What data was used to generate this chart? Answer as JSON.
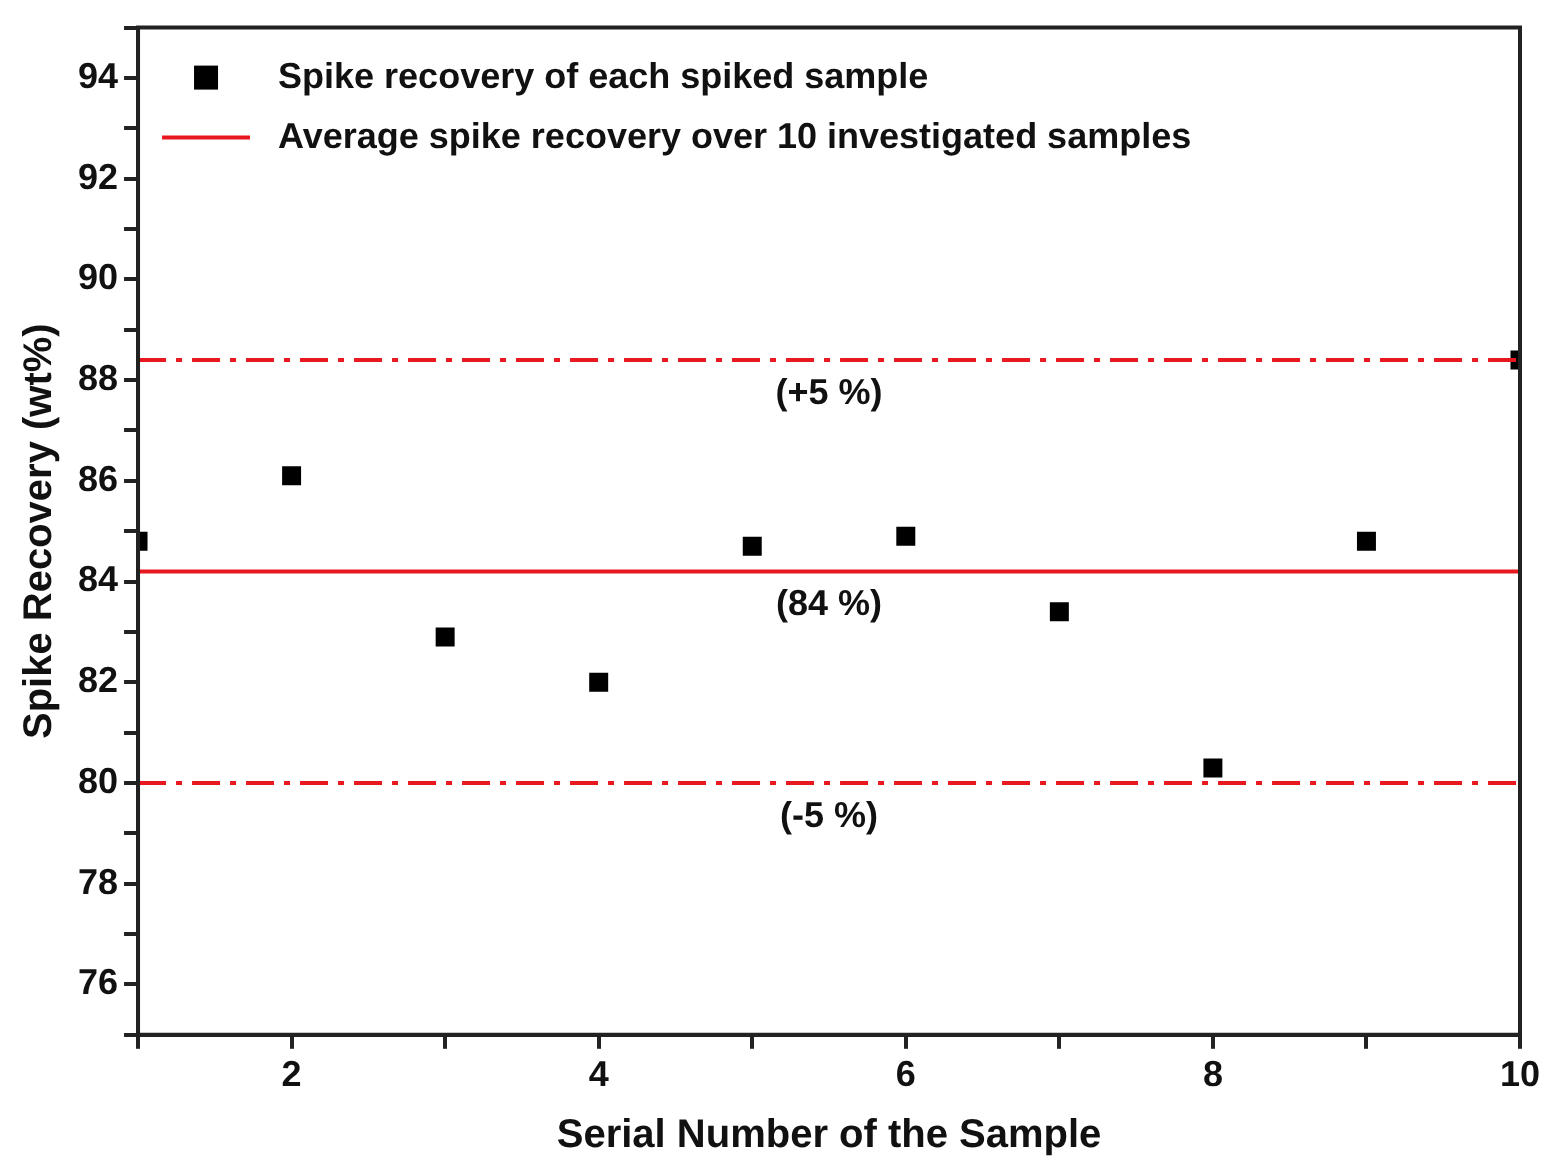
{
  "chart_data": {
    "type": "scatter",
    "xlabel": "Serial Number of the Sample",
    "ylabel": "Spike Recovery (wt%)",
    "x": [
      1,
      2,
      3,
      4,
      5,
      6,
      7,
      8,
      9,
      10
    ],
    "series": [
      {
        "name": "Spike recovery of each spiked sample",
        "type": "scatter",
        "color": "#000000",
        "marker": "square",
        "values": [
          84.8,
          86.1,
          82.9,
          82.0,
          84.7,
          84.9,
          83.4,
          80.3,
          84.8,
          88.4
        ]
      },
      {
        "name": "Average spike recovery over 10 investigated samples",
        "type": "line",
        "color": "#e8191e",
        "marker": "none",
        "line_style": "solid",
        "x": [
          1,
          10
        ],
        "values": [
          84.2,
          84.2
        ]
      }
    ],
    "ref_lines": [
      {
        "axis": "y",
        "value": 88.4,
        "color": "#e8191e",
        "line_style": "dashed"
      },
      {
        "axis": "y",
        "value": 80.0,
        "color": "#e8191e",
        "line_style": "dashed"
      }
    ],
    "annotations": [
      {
        "text": "(+5 %)",
        "y": 88.4
      },
      {
        "text": "(84 %)",
        "y": 84.2
      },
      {
        "text": "(-5 %)",
        "y": 80.0
      }
    ],
    "xlim": [
      1,
      10
    ],
    "xticks": [
      {
        "value": 1,
        "label": null
      },
      2,
      {
        "value": 3,
        "label": null
      },
      4,
      {
        "value": 5,
        "label": null
      },
      6,
      {
        "value": 7,
        "label": null
      },
      8,
      {
        "value": 9,
        "label": null
      },
      10
    ],
    "ylim": [
      75,
      95
    ],
    "yticks": [
      {
        "value": 75,
        "label": null
      },
      76,
      {
        "value": 77,
        "label": null
      },
      78,
      {
        "value": 79,
        "label": null
      },
      80,
      {
        "value": 81,
        "label": null
      },
      82,
      {
        "value": 83,
        "label": null
      },
      84,
      {
        "value": 85,
        "label": null
      },
      86,
      {
        "value": 87,
        "label": null
      },
      88,
      {
        "value": 89,
        "label": null
      },
      90,
      {
        "value": 91,
        "label": null
      },
      92,
      {
        "value": 93,
        "label": null
      },
      94,
      {
        "value": 95,
        "label": null
      }
    ],
    "grid": false,
    "legend": "top left"
  }
}
